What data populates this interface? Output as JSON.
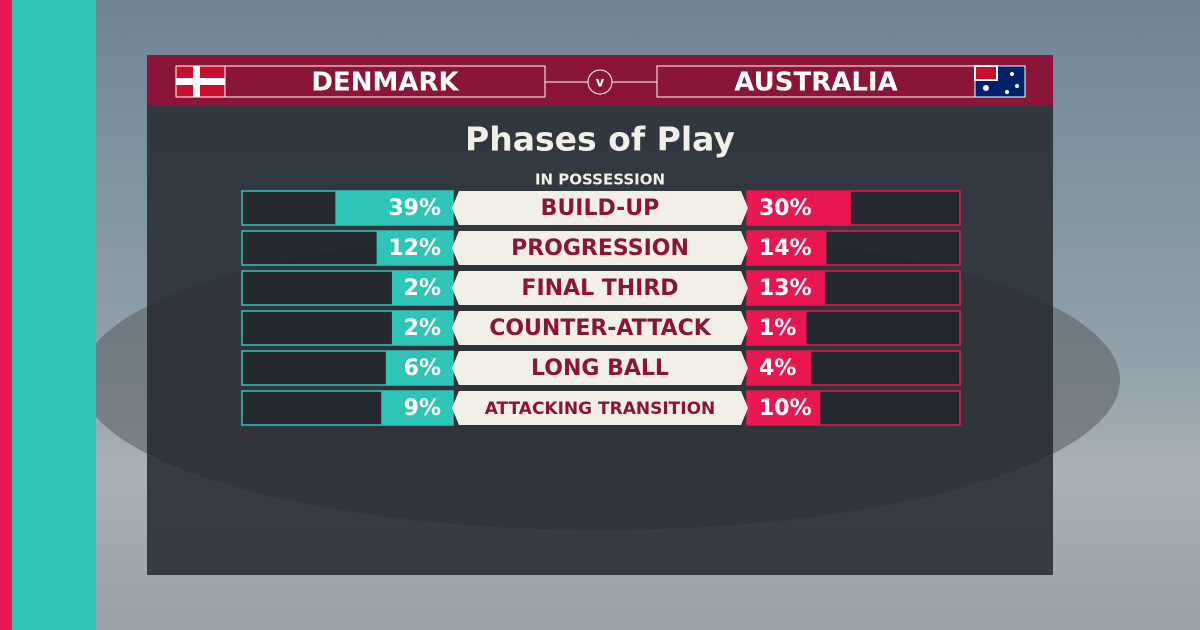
{
  "chart_data": {
    "type": "butterfly",
    "title": "Phases of Play",
    "subtitle": "IN POSSESSION",
    "versus": "v",
    "categories": [
      "BUILD-UP",
      "PROGRESSION",
      "FINAL THIRD",
      "COUNTER-ATTACK",
      "LONG BALL",
      "ATTACKING TRANSITION"
    ],
    "series": [
      {
        "name": "DENMARK",
        "color": "#2ec4b6",
        "values": [
          39,
          12,
          2,
          2,
          6,
          9
        ],
        "value_labels": [
          "39%",
          "12%",
          "2%",
          "2%",
          "6%",
          "9%"
        ]
      },
      {
        "name": "AUSTRALIA",
        "color": "#e8174f",
        "values": [
          30,
          14,
          13,
          1,
          4,
          10
        ],
        "value_labels": [
          "30%",
          "14%",
          "13%",
          "1%",
          "4%",
          "10%"
        ]
      }
    ],
    "xlim": [
      0,
      100
    ]
  }
}
